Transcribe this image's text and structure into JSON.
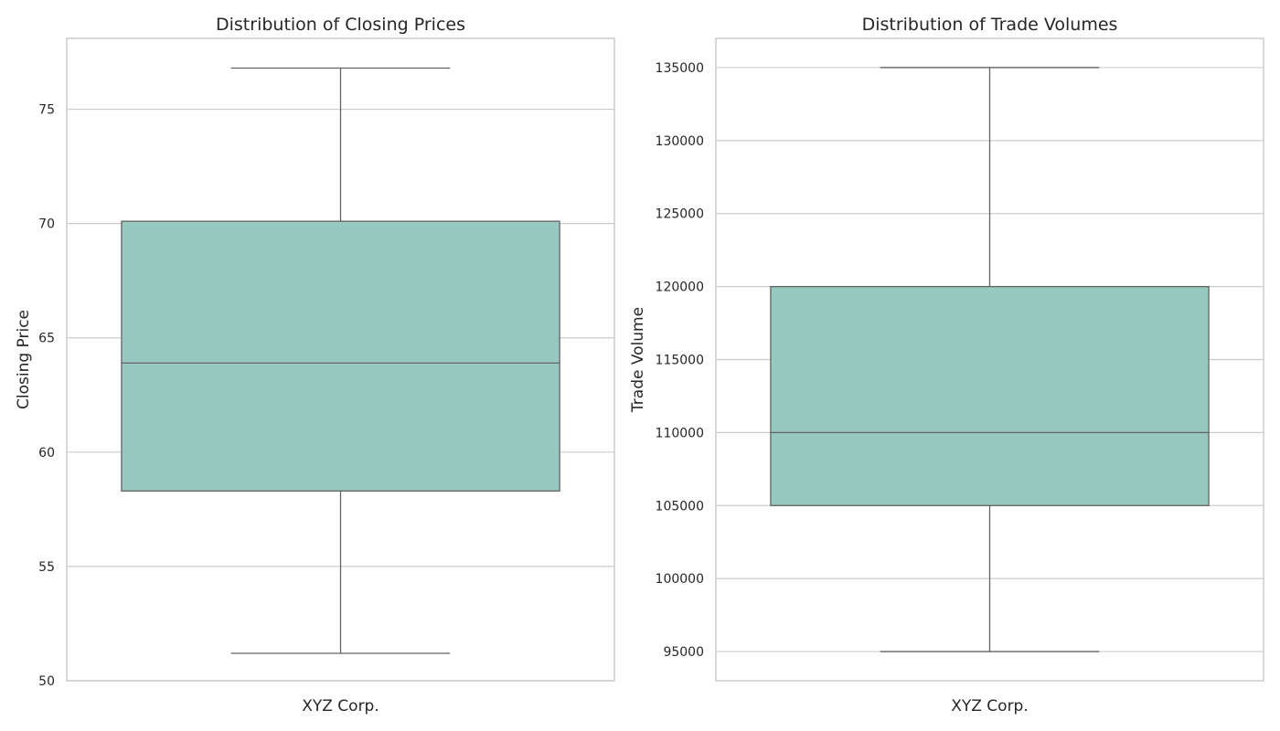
{
  "chart_data": [
    {
      "type": "box",
      "title": "Distribution of Closing Prices",
      "xlabel": "",
      "ylabel": "Closing Price",
      "categories": [
        "XYZ Corp."
      ],
      "ylim": [
        50,
        78.1
      ],
      "yticks": [
        50,
        55,
        60,
        65,
        70,
        75
      ],
      "ytick_labels": [
        "50",
        "55",
        "60",
        "65",
        "70",
        "75"
      ],
      "grid": true,
      "box": {
        "whisker_low": 51.2,
        "q1": 58.3,
        "median": 63.9,
        "q3": 70.1,
        "whisker_high": 76.8
      }
    },
    {
      "type": "box",
      "title": "Distribution of Trade Volumes",
      "xlabel": "",
      "ylabel": "Trade Volume",
      "categories": [
        "XYZ Corp."
      ],
      "ylim": [
        93000,
        137000
      ],
      "yticks": [
        95000,
        100000,
        105000,
        110000,
        115000,
        120000,
        125000,
        130000,
        135000
      ],
      "ytick_labels": [
        "95000",
        "100000",
        "105000",
        "110000",
        "115000",
        "120000",
        "125000",
        "130000",
        "135000"
      ],
      "grid": true,
      "box": {
        "whisker_low": 95000,
        "q1": 105000,
        "median": 110000,
        "q3": 120000,
        "whisker_high": 135000
      }
    }
  ],
  "colors": {
    "box_fill": "#97c9c0",
    "box_edge": "#636363",
    "grid": "#cccccc",
    "spine": "#cccccc",
    "text": "#262626"
  }
}
